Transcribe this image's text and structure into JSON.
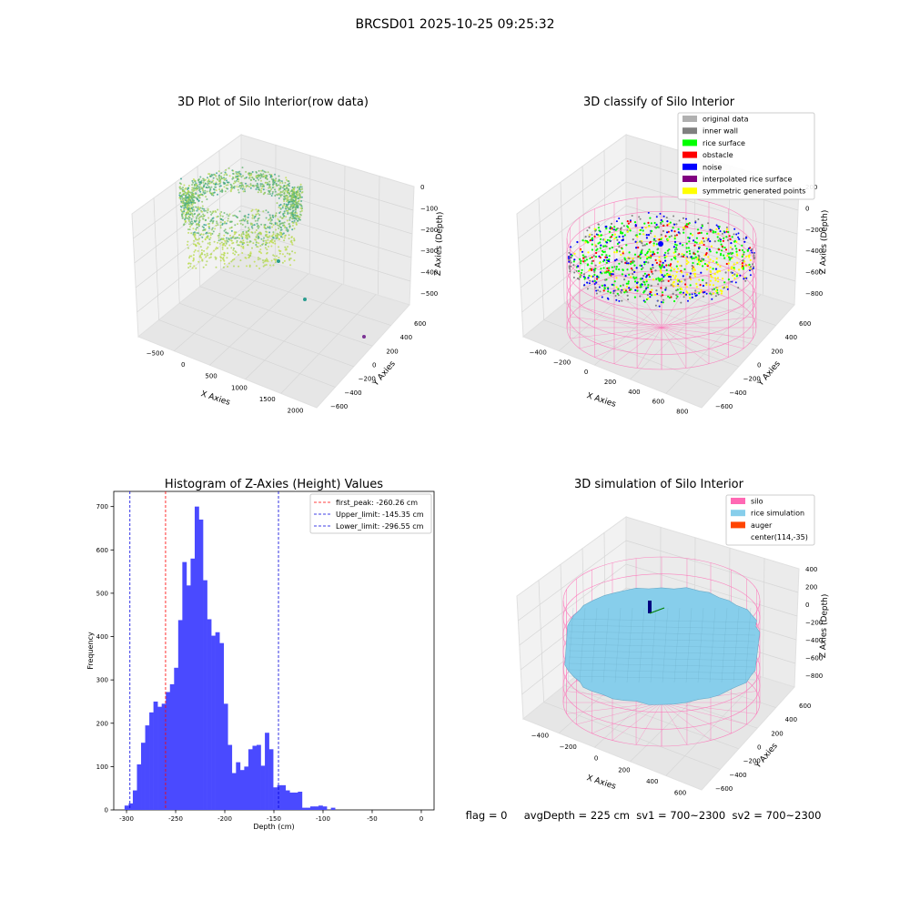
{
  "figure": {
    "suptitle": "BRCSD01 2025-10-25 09:25:32",
    "status_line": "flag = 0     avgDepth = 225 cm  sv1 = 700~2300  sv2 = 700~2300"
  },
  "colors": {
    "hist_bar": "#4a4aff",
    "first_peak_line": "#ff0000",
    "limit_line": "#0000dd",
    "pane": "#f2f2f2",
    "grid": "#d8d8d8",
    "silo_wire": "#ff69b4",
    "rice_sim": "#87ceeb",
    "auger": "#ff4500",
    "rice_surface": "#00ff00",
    "noise": "#0000ff",
    "symmetric": "#ffff00",
    "inner_wall": "#808080",
    "original": "#b0b0b0",
    "obstacle": "#ff0000",
    "interpolated": "#800080",
    "raw_points_low": "#2a9d8f",
    "raw_points_high": "#c6e04a"
  },
  "chart_data": [
    {
      "type": "scatter",
      "subtype": "3d",
      "title": "3D Plot of Silo Interior(row data)",
      "xlabel": "X Axies",
      "ylabel": "Y Axies",
      "zlabel": "Z Axies (Depth)",
      "xticks": [
        "−500",
        "0",
        "500",
        "1000",
        "1500",
        "2000"
      ],
      "yticks": [
        "600",
        "400",
        "200",
        "0",
        "−200",
        "−400",
        "−600"
      ],
      "zticks": [
        "0",
        "−100",
        "−200",
        "−300",
        "−400",
        "−500"
      ],
      "outliers": [
        {
          "x": 900,
          "y": 150,
          "z": -480
        },
        {
          "x": 1700,
          "y": -200,
          "z": -540
        }
      ]
    },
    {
      "type": "scatter",
      "subtype": "3d",
      "title": "3D classify of Silo Interior",
      "xlabel": "X Axies",
      "ylabel": "Y Axies",
      "zlabel": "Z Axies (Depth)",
      "xticks": [
        "−400",
        "−200",
        "0",
        "200",
        "400",
        "600",
        "800"
      ],
      "yticks": [
        "600",
        "400",
        "200",
        "0",
        "−200",
        "−400",
        "−600"
      ],
      "zticks": [
        "200",
        "0",
        "−200",
        "−400",
        "−600",
        "−800"
      ],
      "legend_position": "top-right",
      "legend": [
        {
          "label": "original data",
          "color": "#b0b0b0"
        },
        {
          "label": "inner wall",
          "color": "#808080"
        },
        {
          "label": "rice surface",
          "color": "#00ff00"
        },
        {
          "label": "obstacle",
          "color": "#ff0000"
        },
        {
          "label": "noise",
          "color": "#0000ff"
        },
        {
          "label": "interpolated rice surface",
          "color": "#800080"
        },
        {
          "label": "symmetric generated points",
          "color": "#ffff00"
        }
      ]
    },
    {
      "type": "bar",
      "subtype": "histogram",
      "title": "Histogram of Z-Axies (Height) Values",
      "xlabel": "Depth (cm)",
      "ylabel": "Frequency",
      "xlim": [
        -313,
        13
      ],
      "ylim": [
        0,
        735
      ],
      "xticks": [
        -300,
        -250,
        -200,
        -150,
        -100,
        -50,
        0
      ],
      "yticks": [
        0,
        100,
        200,
        300,
        400,
        500,
        600,
        700
      ],
      "bin_start": -302,
      "bin_width": 4.2,
      "values": [
        10,
        15,
        45,
        105,
        155,
        195,
        225,
        250,
        238,
        245,
        272,
        290,
        328,
        438,
        572,
        518,
        580,
        700,
        670,
        530,
        440,
        402,
        410,
        385,
        245,
        150,
        85,
        110,
        92,
        100,
        140,
        148,
        150,
        102,
        178,
        140,
        52,
        57,
        57,
        45,
        40,
        40,
        42,
        5,
        5,
        8,
        8,
        10,
        8,
        0,
        5
      ],
      "legend_position": "top-right",
      "vlines": [
        {
          "name": "first_peak",
          "label": "first_peak: -260.26 cm",
          "x": -260.26,
          "color": "#ff0000"
        },
        {
          "name": "upper_limit",
          "label": "Upper_limit: -145.35 cm",
          "x": -145.35,
          "color": "#0000dd"
        },
        {
          "name": "lower_limit",
          "label": "Lower_limit: -296.55 cm",
          "x": -296.55,
          "color": "#0000dd"
        }
      ]
    },
    {
      "type": "scatter",
      "subtype": "3d-surface",
      "title": "3D simulation of Silo Interior",
      "xlabel": "X Axies",
      "ylabel": "Y Axies",
      "zlabel": "Z Axies (Depth)",
      "xticks": [
        "−400",
        "−200",
        "0",
        "200",
        "400",
        "600"
      ],
      "yticks": [
        "600",
        "400",
        "200",
        "0",
        "−200",
        "−400",
        "−600"
      ],
      "zticks": [
        "400",
        "200",
        "0",
        "−200",
        "−400",
        "−600",
        "−800"
      ],
      "legend_position": "top-right",
      "legend": [
        {
          "label": "silo",
          "color": "#ff69b4"
        },
        {
          "label": "rice simulation",
          "color": "#87ceeb"
        },
        {
          "label": "auger",
          "color": "#ff4500"
        },
        {
          "label": "center(114,-35)",
          "color": ""
        }
      ]
    }
  ]
}
